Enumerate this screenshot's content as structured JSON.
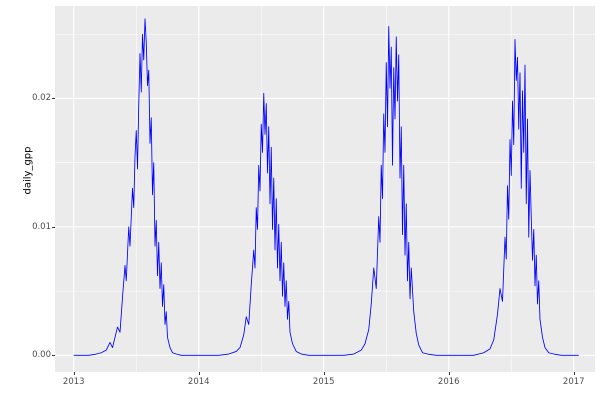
{
  "chart_data": {
    "type": "line",
    "title": "",
    "xlabel": "",
    "ylabel": "daily_gpp",
    "x_tick_labels": [
      "2013",
      "2014",
      "2015",
      "2016",
      "2017"
    ],
    "x_tick_values": [
      2013,
      2014,
      2015,
      2016,
      2017
    ],
    "y_tick_labels": [
      "0.00",
      "0.01",
      "0.02"
    ],
    "y_tick_values": [
      0.0,
      0.01,
      0.02
    ],
    "x_minor_gridlines": [
      2013.5,
      2014.5,
      2015.5,
      2016.5
    ],
    "y_minor_gridlines": [
      0.005,
      0.015,
      0.025
    ],
    "xlim": [
      2012.85,
      2017.17
    ],
    "ylim": [
      -0.0013,
      0.0272
    ],
    "grid": true,
    "legend": "none",
    "theme": "ggplot2-gray",
    "colors": {
      "line": "#0000FF",
      "panel_background": "#EBEBEB",
      "gridline": "#FFFFFF",
      "tick_text": "#4D4D4D",
      "tick_mark": "#333333",
      "axis_title": "#000000"
    },
    "series": [
      {
        "name": "daily_gpp",
        "x": [
          2013.0,
          2013.06,
          2013.12,
          2013.18,
          2013.22,
          2013.26,
          2013.29,
          2013.31,
          2013.33,
          2013.35,
          2013.37,
          2013.39,
          2013.41,
          2013.42,
          2013.44,
          2013.45,
          2013.47,
          2013.48,
          2013.49,
          2013.5,
          2013.51,
          2013.52,
          2013.53,
          2013.54,
          2013.55,
          2013.56,
          2013.57,
          2013.58,
          2013.59,
          2013.6,
          2013.61,
          2013.62,
          2013.63,
          2013.64,
          2013.65,
          2013.66,
          2013.67,
          2013.68,
          2013.69,
          2013.7,
          2013.71,
          2013.72,
          2013.73,
          2013.74,
          2013.75,
          2013.77,
          2013.79,
          2013.82,
          2013.86,
          2013.92,
          2014.0,
          2014.08,
          2014.16,
          2014.24,
          2014.3,
          2014.33,
          2014.36,
          2014.38,
          2014.4,
          2014.42,
          2014.44,
          2014.45,
          2014.46,
          2014.47,
          2014.48,
          2014.49,
          2014.5,
          2014.51,
          2014.52,
          2014.53,
          2014.54,
          2014.55,
          2014.56,
          2014.57,
          2014.58,
          2014.59,
          2014.6,
          2014.61,
          2014.62,
          2014.63,
          2014.64,
          2014.65,
          2014.66,
          2014.67,
          2014.68,
          2014.69,
          2014.7,
          2014.71,
          2014.72,
          2014.73,
          2014.75,
          2014.78,
          2014.82,
          2014.88,
          2014.94,
          2015.0,
          2015.08,
          2015.16,
          2015.24,
          2015.3,
          2015.33,
          2015.36,
          2015.38,
          2015.4,
          2015.42,
          2015.44,
          2015.45,
          2015.46,
          2015.47,
          2015.48,
          2015.49,
          2015.5,
          2015.51,
          2015.52,
          2015.53,
          2015.54,
          2015.55,
          2015.56,
          2015.57,
          2015.58,
          2015.59,
          2015.6,
          2015.61,
          2015.62,
          2015.63,
          2015.64,
          2015.65,
          2015.66,
          2015.67,
          2015.68,
          2015.69,
          2015.7,
          2015.72,
          2015.74,
          2015.76,
          2015.79,
          2015.83,
          2015.9,
          2015.96,
          2016.04,
          2016.12,
          2016.2,
          2016.28,
          2016.33,
          2016.36,
          2016.39,
          2016.41,
          2016.43,
          2016.45,
          2016.46,
          2016.47,
          2016.48,
          2016.49,
          2016.5,
          2016.51,
          2016.52,
          2016.53,
          2016.54,
          2016.55,
          2016.56,
          2016.57,
          2016.58,
          2016.59,
          2016.6,
          2016.61,
          2016.62,
          2016.63,
          2016.64,
          2016.65,
          2016.66,
          2016.67,
          2016.68,
          2016.69,
          2016.7,
          2016.71,
          2016.72,
          2016.73,
          2016.75,
          2016.77,
          2016.8,
          2016.84,
          2016.9,
          2016.96,
          2017.0,
          2017.04
        ],
        "y": [
          0.0,
          0.0,
          0.0,
          0.0001,
          0.0002,
          0.0004,
          0.001,
          0.0006,
          0.0014,
          0.0022,
          0.0018,
          0.0045,
          0.007,
          0.0058,
          0.01,
          0.0085,
          0.013,
          0.0115,
          0.0155,
          0.0175,
          0.0145,
          0.0195,
          0.0235,
          0.0205,
          0.025,
          0.023,
          0.0262,
          0.0244,
          0.021,
          0.0222,
          0.0165,
          0.0185,
          0.0125,
          0.015,
          0.0085,
          0.0105,
          0.0062,
          0.0088,
          0.0052,
          0.0072,
          0.0038,
          0.0055,
          0.0024,
          0.0034,
          0.0014,
          0.0006,
          0.0002,
          0.0001,
          0.0,
          0.0,
          0.0,
          0.0,
          0.0,
          0.0001,
          0.0003,
          0.0006,
          0.0016,
          0.003,
          0.0024,
          0.0055,
          0.0082,
          0.0068,
          0.0115,
          0.0098,
          0.0148,
          0.0128,
          0.018,
          0.0158,
          0.0204,
          0.0172,
          0.0196,
          0.0142,
          0.0178,
          0.0118,
          0.0162,
          0.0098,
          0.0138,
          0.0082,
          0.0122,
          0.0068,
          0.0102,
          0.0058,
          0.0088,
          0.0046,
          0.0072,
          0.0038,
          0.0058,
          0.0028,
          0.0042,
          0.0018,
          0.0009,
          0.0003,
          0.0001,
          0.0,
          0.0,
          0.0,
          0.0,
          0.0,
          0.0001,
          0.0004,
          0.0009,
          0.002,
          0.004,
          0.0068,
          0.0052,
          0.0108,
          0.0088,
          0.0148,
          0.0122,
          0.0188,
          0.0158,
          0.0228,
          0.0178,
          0.0256,
          0.0208,
          0.024,
          0.0148,
          0.0224,
          0.0184,
          0.0248,
          0.0198,
          0.0234,
          0.0138,
          0.0178,
          0.0094,
          0.0148,
          0.0078,
          0.0118,
          0.0058,
          0.0088,
          0.0044,
          0.0068,
          0.0034,
          0.0017,
          0.0008,
          0.0002,
          0.0001,
          0.0,
          0.0,
          0.0,
          0.0,
          0.0,
          0.0002,
          0.0005,
          0.0012,
          0.0032,
          0.0052,
          0.0042,
          0.0092,
          0.0075,
          0.0132,
          0.0106,
          0.0168,
          0.014,
          0.0198,
          0.0164,
          0.0246,
          0.0214,
          0.0232,
          0.0176,
          0.022,
          0.013,
          0.0206,
          0.0158,
          0.0226,
          0.0118,
          0.0184,
          0.0092,
          0.0144,
          0.0108,
          0.0074,
          0.0098,
          0.0054,
          0.0078,
          0.004,
          0.0058,
          0.0028,
          0.0014,
          0.0006,
          0.0002,
          0.0001,
          0.0,
          0.0,
          0.0,
          0.0
        ]
      }
    ]
  }
}
